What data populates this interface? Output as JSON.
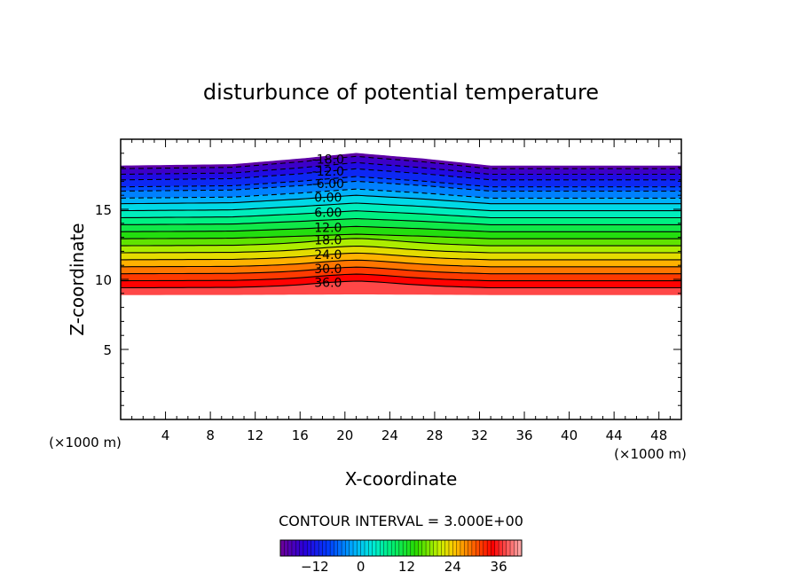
{
  "chart_data": {
    "type": "contour",
    "title": "disturbunce of potential temperature",
    "xlabel": "X-coordinate",
    "ylabel": "Z-coordinate",
    "x_unit": "(×1000 m)",
    "z_unit": "(×1000 m)",
    "xlim": [
      0,
      50
    ],
    "ylim": [
      0,
      20
    ],
    "x_ticks": [
      4,
      8,
      12,
      16,
      20,
      24,
      28,
      32,
      36,
      40,
      44,
      48
    ],
    "x_tick_labels": [
      "4",
      "8",
      "12",
      "16",
      "20",
      "24",
      "28",
      "32",
      "36",
      "40",
      "44",
      "48"
    ],
    "y_ticks": [
      5,
      10,
      15
    ],
    "y_tick_labels": [
      "5",
      "10",
      "15"
    ],
    "data_top_z": [
      {
        "x": 0,
        "z": 18.1
      },
      {
        "x": 10,
        "z": 18.2
      },
      {
        "x": 16,
        "z": 18.6
      },
      {
        "x": 21,
        "z": 19.0
      },
      {
        "x": 27,
        "z": 18.6
      },
      {
        "x": 33,
        "z": 18.1
      },
      {
        "x": 50,
        "z": 18.1
      }
    ],
    "data_bottom_z": 8.9,
    "contour_interval": "CONTOUR INTERVAL = 3.000E+00",
    "contour_levels": [
      -18,
      -15,
      -12,
      -9,
      -6,
      -3,
      0,
      3,
      6,
      9,
      12,
      15,
      18,
      21,
      24,
      27,
      30,
      33,
      36
    ],
    "contour_labels": [
      {
        "level": -18,
        "text": "-18.0"
      },
      {
        "level": -12,
        "text": "-12.0"
      },
      {
        "level": -6,
        "text": "-6.00"
      },
      {
        "level": 0,
        "text": "0.00"
      },
      {
        "level": 6,
        "text": "6.00"
      },
      {
        "level": 12,
        "text": "12.0"
      },
      {
        "level": 18,
        "text": "18.0"
      },
      {
        "level": 24,
        "text": "24.0"
      },
      {
        "level": 30,
        "text": "30.0"
      },
      {
        "level": 36,
        "text": "36.0"
      }
    ],
    "contour_base_z": [
      {
        "level": -18,
        "z": 17.9
      },
      {
        "level": -15,
        "z": 17.5
      },
      {
        "level": -12,
        "z": 17.1
      },
      {
        "level": -9,
        "z": 16.6
      },
      {
        "level": -6,
        "z": 16.3
      },
      {
        "level": -3,
        "z": 15.8
      },
      {
        "level": 0,
        "z": 15.4
      },
      {
        "level": 3,
        "z": 14.9
      },
      {
        "level": 6,
        "z": 14.4
      },
      {
        "level": 9,
        "z": 13.9
      },
      {
        "level": 12,
        "z": 13.4
      },
      {
        "level": 15,
        "z": 12.9
      },
      {
        "level": 18,
        "z": 12.4
      },
      {
        "level": 21,
        "z": 11.9
      },
      {
        "level": 24,
        "z": 11.4
      },
      {
        "level": 27,
        "z": 10.9
      },
      {
        "level": 30,
        "z": 10.4
      },
      {
        "level": 33,
        "z": 9.9
      },
      {
        "level": 36,
        "z": 9.4
      }
    ],
    "colorbar": {
      "min": -21,
      "max": 42,
      "ticks": [
        -12,
        0,
        12,
        24,
        36
      ],
      "tick_labels": [
        "−12",
        "0",
        "12",
        "24",
        "36"
      ]
    }
  }
}
